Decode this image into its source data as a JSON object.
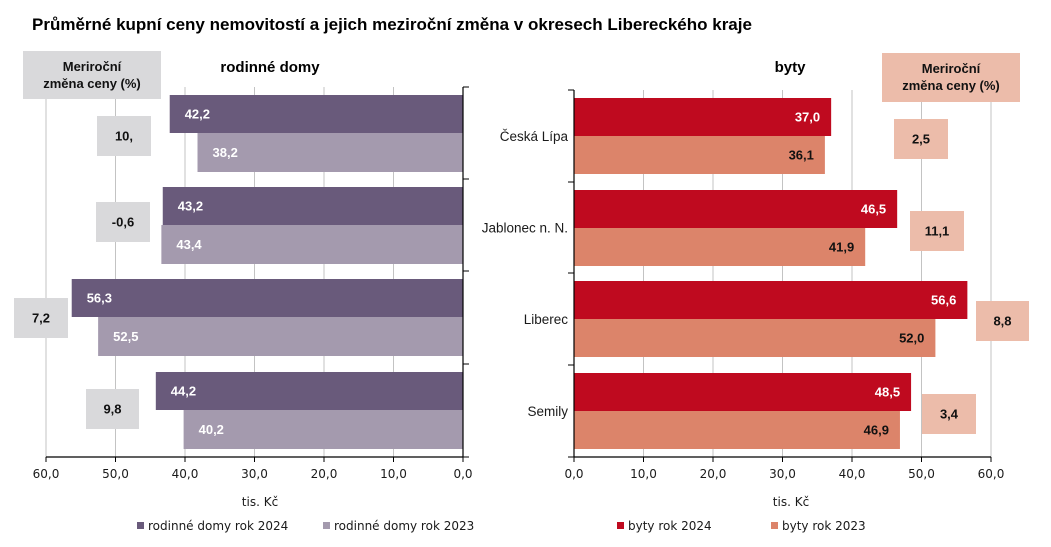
{
  "title": "Průměrné kupní ceny nemovitostí a jejich meziroční změna v okresech Libereckého kraje",
  "chart_data": [
    {
      "type": "bar",
      "orientation": "horizontal",
      "panel_title": "rodinné domy",
      "categories": [
        "Česká Lípa",
        "Jablonec n. N.",
        "Liberec",
        "Semily"
      ],
      "series": [
        {
          "name": "rodinné domy rok 2024",
          "values": [
            42.2,
            43.2,
            56.3,
            44.2
          ],
          "labels": [
            "42,2",
            "43,2",
            "56,3",
            "44,2"
          ],
          "color": "#695a7b",
          "label_color": "#ffffff"
        },
        {
          "name": "rodinné domy rok 2023",
          "values": [
            38.2,
            43.4,
            52.5,
            40.2
          ],
          "labels": [
            "38,2",
            "43,4",
            "52,5",
            "40,2"
          ],
          "color": "#a49aae",
          "label_color": "#ffffff"
        }
      ],
      "yoy_change": {
        "header_line1": "Meriroční",
        "header_line2": "změna ceny (%)",
        "labels": [
          "10,",
          "-0,6",
          "7,2",
          "9,8"
        ],
        "box_color": "#d9d9db"
      },
      "xlabel": "tis. Kč",
      "xlim": [
        0,
        60
      ],
      "x_reversed": true,
      "xtick_values": [
        0,
        10,
        20,
        30,
        40,
        50,
        60
      ],
      "xticks": [
        "0,0",
        "10,0",
        "20,0",
        "30,0",
        "40,0",
        "50,0",
        "60,0"
      ],
      "grid": true,
      "legend": "bottom"
    },
    {
      "type": "bar",
      "orientation": "horizontal",
      "panel_title": "byty",
      "categories": [
        "Česká Lípa",
        "Jablonec n. N.",
        "Liberec",
        "Semily"
      ],
      "series": [
        {
          "name": "byty rok 2024",
          "values": [
            37.0,
            46.5,
            56.6,
            48.5
          ],
          "labels": [
            "37,0",
            "46,5",
            "56,6",
            "48,5"
          ],
          "color": "#bf0a1f",
          "label_color": "#ffffff"
        },
        {
          "name": "byty rok 2023",
          "values": [
            36.1,
            41.9,
            52.0,
            46.9
          ],
          "labels": [
            "36,1",
            "41,9",
            "52,0",
            "46,9"
          ],
          "color": "#dc846a",
          "label_color": "#111111"
        }
      ],
      "yoy_change": {
        "header_line1": "Meriroční",
        "header_line2": "změna ceny (%)",
        "labels": [
          "2,5",
          "11,1",
          "8,8",
          "3,4"
        ],
        "box_color": "#ecbcaa"
      },
      "xlabel": "tis. Kč",
      "xlim": [
        0,
        60
      ],
      "x_reversed": false,
      "xtick_values": [
        0,
        10,
        20,
        30,
        40,
        50,
        60
      ],
      "xticks": [
        "0,0",
        "10,0",
        "20,0",
        "30,0",
        "40,0",
        "50,0",
        "60,0"
      ],
      "grid": true,
      "legend": "bottom"
    }
  ]
}
